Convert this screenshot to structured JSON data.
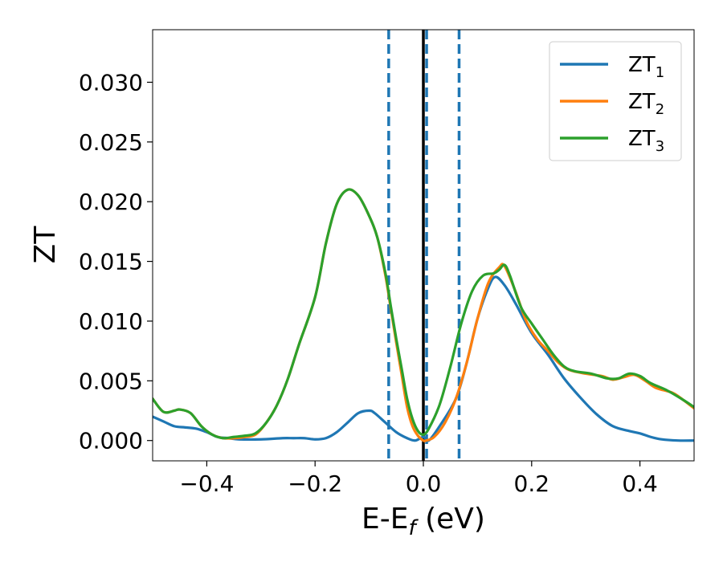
{
  "chart_data": {
    "type": "line",
    "xlabel_main": "E-E",
    "xlabel_sub": "f",
    "xlabel_tail": " (eV)",
    "ylabel": "ZT",
    "xlim": [
      -0.5,
      0.5
    ],
    "ylim": [
      -0.0017,
      0.0344
    ],
    "x_ticks": [
      -0.4,
      -0.2,
      0.0,
      0.2,
      0.4
    ],
    "x_tick_labels": [
      "−0.4",
      "−0.2",
      "0.0",
      "0.2",
      "0.4"
    ],
    "y_ticks": [
      0.0,
      0.005,
      0.01,
      0.015,
      0.02,
      0.025,
      0.03
    ],
    "y_tick_labels": [
      "0.000",
      "0.005",
      "0.010",
      "0.015",
      "0.020",
      "0.025",
      "0.030"
    ],
    "grid": false,
    "legend_position": "top-right",
    "vlines": [
      {
        "x": -0.064,
        "style": "dashed",
        "color": "#1f77b4"
      },
      {
        "x": 0.0,
        "style": "solid",
        "color": "#000000"
      },
      {
        "x": 0.006,
        "style": "dashed",
        "color": "#1f77b4"
      },
      {
        "x": 0.066,
        "style": "dashed",
        "color": "#1f77b4"
      }
    ],
    "series": [
      {
        "name": "ZT",
        "name_sub": "1",
        "color": "#1f77b4",
        "points": [
          [
            -0.5,
            0.002
          ],
          [
            -0.48,
            0.0016
          ],
          [
            -0.46,
            0.0012
          ],
          [
            -0.44,
            0.0011
          ],
          [
            -0.42,
            0.001
          ],
          [
            -0.4,
            0.0007
          ],
          [
            -0.38,
            0.0003
          ],
          [
            -0.36,
            0.0002
          ],
          [
            -0.34,
            0.0001
          ],
          [
            -0.3,
            0.0001
          ],
          [
            -0.26,
            0.0002
          ],
          [
            -0.24,
            0.0002
          ],
          [
            -0.22,
            0.0002
          ],
          [
            -0.2,
            0.0001
          ],
          [
            -0.18,
            0.0002
          ],
          [
            -0.16,
            0.0007
          ],
          [
            -0.14,
            0.0015
          ],
          [
            -0.12,
            0.0023
          ],
          [
            -0.1,
            0.0025
          ],
          [
            -0.09,
            0.0023
          ],
          [
            -0.07,
            0.0015
          ],
          [
            -0.05,
            0.0007
          ],
          [
            -0.03,
            0.0002
          ],
          [
            -0.015,
            0.0
          ],
          [
            0.0,
            0.0003
          ],
          [
            0.01,
            0.0
          ],
          [
            0.03,
            0.0012
          ],
          [
            0.06,
            0.0035
          ],
          [
            0.08,
            0.0065
          ],
          [
            0.1,
            0.0102
          ],
          [
            0.12,
            0.0128
          ],
          [
            0.133,
            0.0137
          ],
          [
            0.15,
            0.013
          ],
          [
            0.17,
            0.0115
          ],
          [
            0.2,
            0.009
          ],
          [
            0.23,
            0.0072
          ],
          [
            0.26,
            0.0052
          ],
          [
            0.29,
            0.0036
          ],
          [
            0.32,
            0.0022
          ],
          [
            0.35,
            0.0012
          ],
          [
            0.38,
            0.0008
          ],
          [
            0.4,
            0.0006
          ],
          [
            0.42,
            0.0003
          ],
          [
            0.44,
            0.0001
          ],
          [
            0.47,
            0.0
          ],
          [
            0.5,
            0.0
          ]
        ]
      },
      {
        "name": "ZT",
        "name_sub": "2",
        "color": "#ff7f0e",
        "points": [
          [
            -0.5,
            0.0035
          ],
          [
            -0.48,
            0.0024
          ],
          [
            -0.46,
            0.0025
          ],
          [
            -0.45,
            0.0026
          ],
          [
            -0.43,
            0.0023
          ],
          [
            -0.41,
            0.0012
          ],
          [
            -0.39,
            0.0005
          ],
          [
            -0.37,
            0.0002
          ],
          [
            -0.35,
            0.0002
          ],
          [
            -0.33,
            0.0003
          ],
          [
            -0.31,
            0.0005
          ],
          [
            -0.29,
            0.0015
          ],
          [
            -0.27,
            0.003
          ],
          [
            -0.25,
            0.0052
          ],
          [
            -0.23,
            0.008
          ],
          [
            -0.2,
            0.012
          ],
          [
            -0.18,
            0.0165
          ],
          [
            -0.16,
            0.0198
          ],
          [
            -0.14,
            0.021
          ],
          [
            -0.12,
            0.0205
          ],
          [
            -0.1,
            0.0188
          ],
          [
            -0.085,
            0.017
          ],
          [
            -0.07,
            0.0138
          ],
          [
            -0.06,
            0.011
          ],
          [
            -0.05,
            0.0082
          ],
          [
            -0.04,
            0.0055
          ],
          [
            -0.03,
            0.0028
          ],
          [
            -0.02,
            0.0012
          ],
          [
            -0.01,
            0.0004
          ],
          [
            0.0,
            0.0
          ],
          [
            0.005,
            0.0
          ],
          [
            0.02,
            0.0003
          ],
          [
            0.04,
            0.0015
          ],
          [
            0.06,
            0.0035
          ],
          [
            0.08,
            0.0065
          ],
          [
            0.1,
            0.0102
          ],
          [
            0.12,
            0.0132
          ],
          [
            0.14,
            0.0145
          ],
          [
            0.15,
            0.0146
          ],
          [
            0.17,
            0.0125
          ],
          [
            0.19,
            0.01
          ],
          [
            0.21,
            0.0085
          ],
          [
            0.23,
            0.0075
          ],
          [
            0.25,
            0.0065
          ],
          [
            0.27,
            0.0059
          ],
          [
            0.3,
            0.0056
          ],
          [
            0.33,
            0.0054
          ],
          [
            0.35,
            0.0051
          ],
          [
            0.37,
            0.0053
          ],
          [
            0.39,
            0.0055
          ],
          [
            0.41,
            0.005
          ],
          [
            0.43,
            0.0044
          ],
          [
            0.46,
            0.004
          ],
          [
            0.48,
            0.0034
          ],
          [
            0.5,
            0.0027
          ]
        ]
      },
      {
        "name": "ZT",
        "name_sub": "3",
        "color": "#2ca02c",
        "points": [
          [
            -0.5,
            0.0035
          ],
          [
            -0.48,
            0.0024
          ],
          [
            -0.46,
            0.0025
          ],
          [
            -0.45,
            0.0026
          ],
          [
            -0.43,
            0.0023
          ],
          [
            -0.41,
            0.0012
          ],
          [
            -0.39,
            0.0005
          ],
          [
            -0.37,
            0.0002
          ],
          [
            -0.35,
            0.0003
          ],
          [
            -0.33,
            0.0004
          ],
          [
            -0.31,
            0.0006
          ],
          [
            -0.29,
            0.0015
          ],
          [
            -0.27,
            0.003
          ],
          [
            -0.25,
            0.0052
          ],
          [
            -0.23,
            0.008
          ],
          [
            -0.2,
            0.012
          ],
          [
            -0.18,
            0.0165
          ],
          [
            -0.16,
            0.0198
          ],
          [
            -0.14,
            0.021
          ],
          [
            -0.12,
            0.0205
          ],
          [
            -0.1,
            0.0188
          ],
          [
            -0.085,
            0.017
          ],
          [
            -0.07,
            0.014
          ],
          [
            -0.06,
            0.0112
          ],
          [
            -0.05,
            0.0085
          ],
          [
            -0.04,
            0.006
          ],
          [
            -0.03,
            0.0035
          ],
          [
            -0.02,
            0.0018
          ],
          [
            -0.01,
            0.0008
          ],
          [
            0.0,
            0.0005
          ],
          [
            0.01,
            0.001
          ],
          [
            0.03,
            0.003
          ],
          [
            0.05,
            0.0062
          ],
          [
            0.07,
            0.0098
          ],
          [
            0.09,
            0.0125
          ],
          [
            0.11,
            0.0138
          ],
          [
            0.13,
            0.014
          ],
          [
            0.14,
            0.0143
          ],
          [
            0.15,
            0.0147
          ],
          [
            0.16,
            0.0138
          ],
          [
            0.18,
            0.0112
          ],
          [
            0.2,
            0.0098
          ],
          [
            0.22,
            0.0085
          ],
          [
            0.24,
            0.0072
          ],
          [
            0.26,
            0.0062
          ],
          [
            0.28,
            0.0058
          ],
          [
            0.31,
            0.0056
          ],
          [
            0.34,
            0.0052
          ],
          [
            0.36,
            0.0052
          ],
          [
            0.38,
            0.0056
          ],
          [
            0.4,
            0.0054
          ],
          [
            0.42,
            0.0048
          ],
          [
            0.45,
            0.0042
          ],
          [
            0.48,
            0.0034
          ],
          [
            0.5,
            0.0028
          ]
        ]
      }
    ]
  }
}
